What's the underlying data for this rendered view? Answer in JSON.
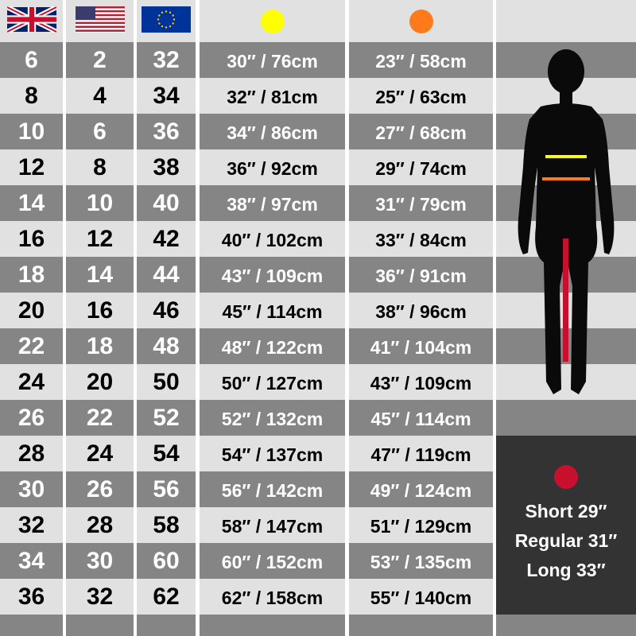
{
  "headers": {
    "uk": {
      "icon": "uk-flag-icon"
    },
    "us": {
      "icon": "us-flag-icon"
    },
    "eu": {
      "icon": "eu-flag-icon"
    },
    "waist": {
      "icon": "yellow-dot-icon",
      "color": "#ffff00"
    },
    "hips": {
      "icon": "orange-dot-icon",
      "color": "#ff7a1a"
    }
  },
  "rows": [
    {
      "uk": "6",
      "us": "2",
      "eu": "32",
      "waist": "30″ / 76cm",
      "hips": "23″ / 58cm"
    },
    {
      "uk": "8",
      "us": "4",
      "eu": "34",
      "waist": "32″ / 81cm",
      "hips": "25″ / 63cm"
    },
    {
      "uk": "10",
      "us": "6",
      "eu": "36",
      "waist": "34″ / 86cm",
      "hips": "27″ / 68cm"
    },
    {
      "uk": "12",
      "us": "8",
      "eu": "38",
      "waist": "36″ / 92cm",
      "hips": "29″ / 74cm"
    },
    {
      "uk": "14",
      "us": "10",
      "eu": "40",
      "waist": "38″ / 97cm",
      "hips": "31″ / 79cm"
    },
    {
      "uk": "16",
      "us": "12",
      "eu": "42",
      "waist": "40″ / 102cm",
      "hips": "33″ / 84cm"
    },
    {
      "uk": "18",
      "us": "14",
      "eu": "44",
      "waist": "43″ / 109cm",
      "hips": "36″ / 91cm"
    },
    {
      "uk": "20",
      "us": "16",
      "eu": "46",
      "waist": "45″ / 114cm",
      "hips": "38″ / 96cm"
    },
    {
      "uk": "22",
      "us": "18",
      "eu": "48",
      "waist": "48″ / 122cm",
      "hips": "41″ / 104cm"
    },
    {
      "uk": "24",
      "us": "20",
      "eu": "50",
      "waist": "50″ / 127cm",
      "hips": "43″ / 109cm"
    },
    {
      "uk": "26",
      "us": "22",
      "eu": "52",
      "waist": "52″ / 132cm",
      "hips": "45″ / 114cm"
    },
    {
      "uk": "28",
      "us": "24",
      "eu": "54",
      "waist": "54″ / 137cm",
      "hips": "47″ / 119cm"
    },
    {
      "uk": "30",
      "us": "26",
      "eu": "56",
      "waist": "56″ / 142cm",
      "hips": "49″ / 124cm"
    },
    {
      "uk": "32",
      "us": "28",
      "eu": "58",
      "waist": "58″ / 147cm",
      "hips": "51″ / 129cm"
    },
    {
      "uk": "34",
      "us": "30",
      "eu": "60",
      "waist": "60″ / 152cm",
      "hips": "53″ / 135cm"
    },
    {
      "uk": "36",
      "us": "32",
      "eu": "62",
      "waist": "62″ / 158cm",
      "hips": "55″ / 140cm"
    }
  ],
  "inseam": {
    "icon": "red-dot-icon",
    "color": "#c8102e",
    "lengths": [
      "Short 29″",
      "Regular 31″",
      "Long 33″"
    ]
  },
  "colors": {
    "dark_row": "#858585",
    "light_row": "#e1e1e1",
    "panel": "#333333"
  }
}
